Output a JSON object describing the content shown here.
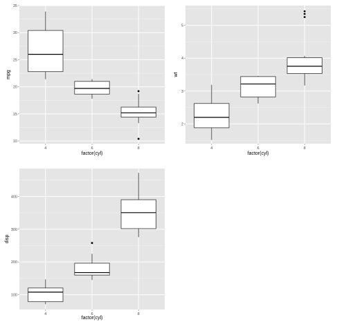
{
  "chart_data": [
    {
      "type": "boxplot",
      "xlabel": "factor(cyl)",
      "ylabel": "mpg",
      "categories": [
        "4",
        "6",
        "8"
      ],
      "ylim": [
        9.5,
        35
      ],
      "yticks": [
        10,
        15,
        20,
        25,
        30,
        35
      ],
      "grid": true,
      "boxes": [
        {
          "category": "4",
          "min": 21.4,
          "q1": 22.8,
          "median": 26.0,
          "q3": 30.4,
          "max": 33.9,
          "outliers": []
        },
        {
          "category": "6",
          "min": 17.8,
          "q1": 18.65,
          "median": 19.7,
          "q3": 21.0,
          "max": 21.4,
          "outliers": []
        },
        {
          "category": "8",
          "min": 13.3,
          "q1": 14.4,
          "median": 15.2,
          "q3": 16.25,
          "max": 18.7,
          "outliers": [
            10.4,
            19.2
          ]
        }
      ]
    },
    {
      "type": "boxplot",
      "xlabel": "factor(cyl)",
      "ylabel": "wt",
      "categories": [
        "4",
        "6",
        "8"
      ],
      "ylim": [
        1.4,
        5.6
      ],
      "yticks": [
        2,
        3,
        4,
        5
      ],
      "grid": true,
      "boxes": [
        {
          "category": "4",
          "min": 1.513,
          "q1": 1.885,
          "median": 2.2,
          "q3": 2.623,
          "max": 3.19,
          "outliers": []
        },
        {
          "category": "6",
          "min": 2.62,
          "q1": 2.822,
          "median": 3.215,
          "q3": 3.44,
          "max": 3.46,
          "outliers": []
        },
        {
          "category": "8",
          "min": 3.17,
          "q1": 3.533,
          "median": 3.755,
          "q3": 4.014,
          "max": 4.07,
          "outliers": [
            5.25,
            5.345,
            5.424
          ]
        }
      ]
    },
    {
      "type": "boxplot",
      "xlabel": "factor(cyl)",
      "ylabel": "disp",
      "categories": [
        "4",
        "6",
        "8"
      ],
      "ylim": [
        55,
        485
      ],
      "yticks": [
        100,
        200,
        300,
        400
      ],
      "grid": true,
      "boxes": [
        {
          "category": "4",
          "min": 71.1,
          "q1": 78.85,
          "median": 108,
          "q3": 120.65,
          "max": 146.7,
          "outliers": []
        },
        {
          "category": "6",
          "min": 145,
          "q1": 160,
          "median": 167.6,
          "q3": 196.3,
          "max": 225,
          "outliers": [
            258
          ]
        },
        {
          "category": "8",
          "min": 275.8,
          "q1": 301.75,
          "median": 350.5,
          "q3": 390,
          "max": 472,
          "outliers": []
        }
      ]
    }
  ]
}
